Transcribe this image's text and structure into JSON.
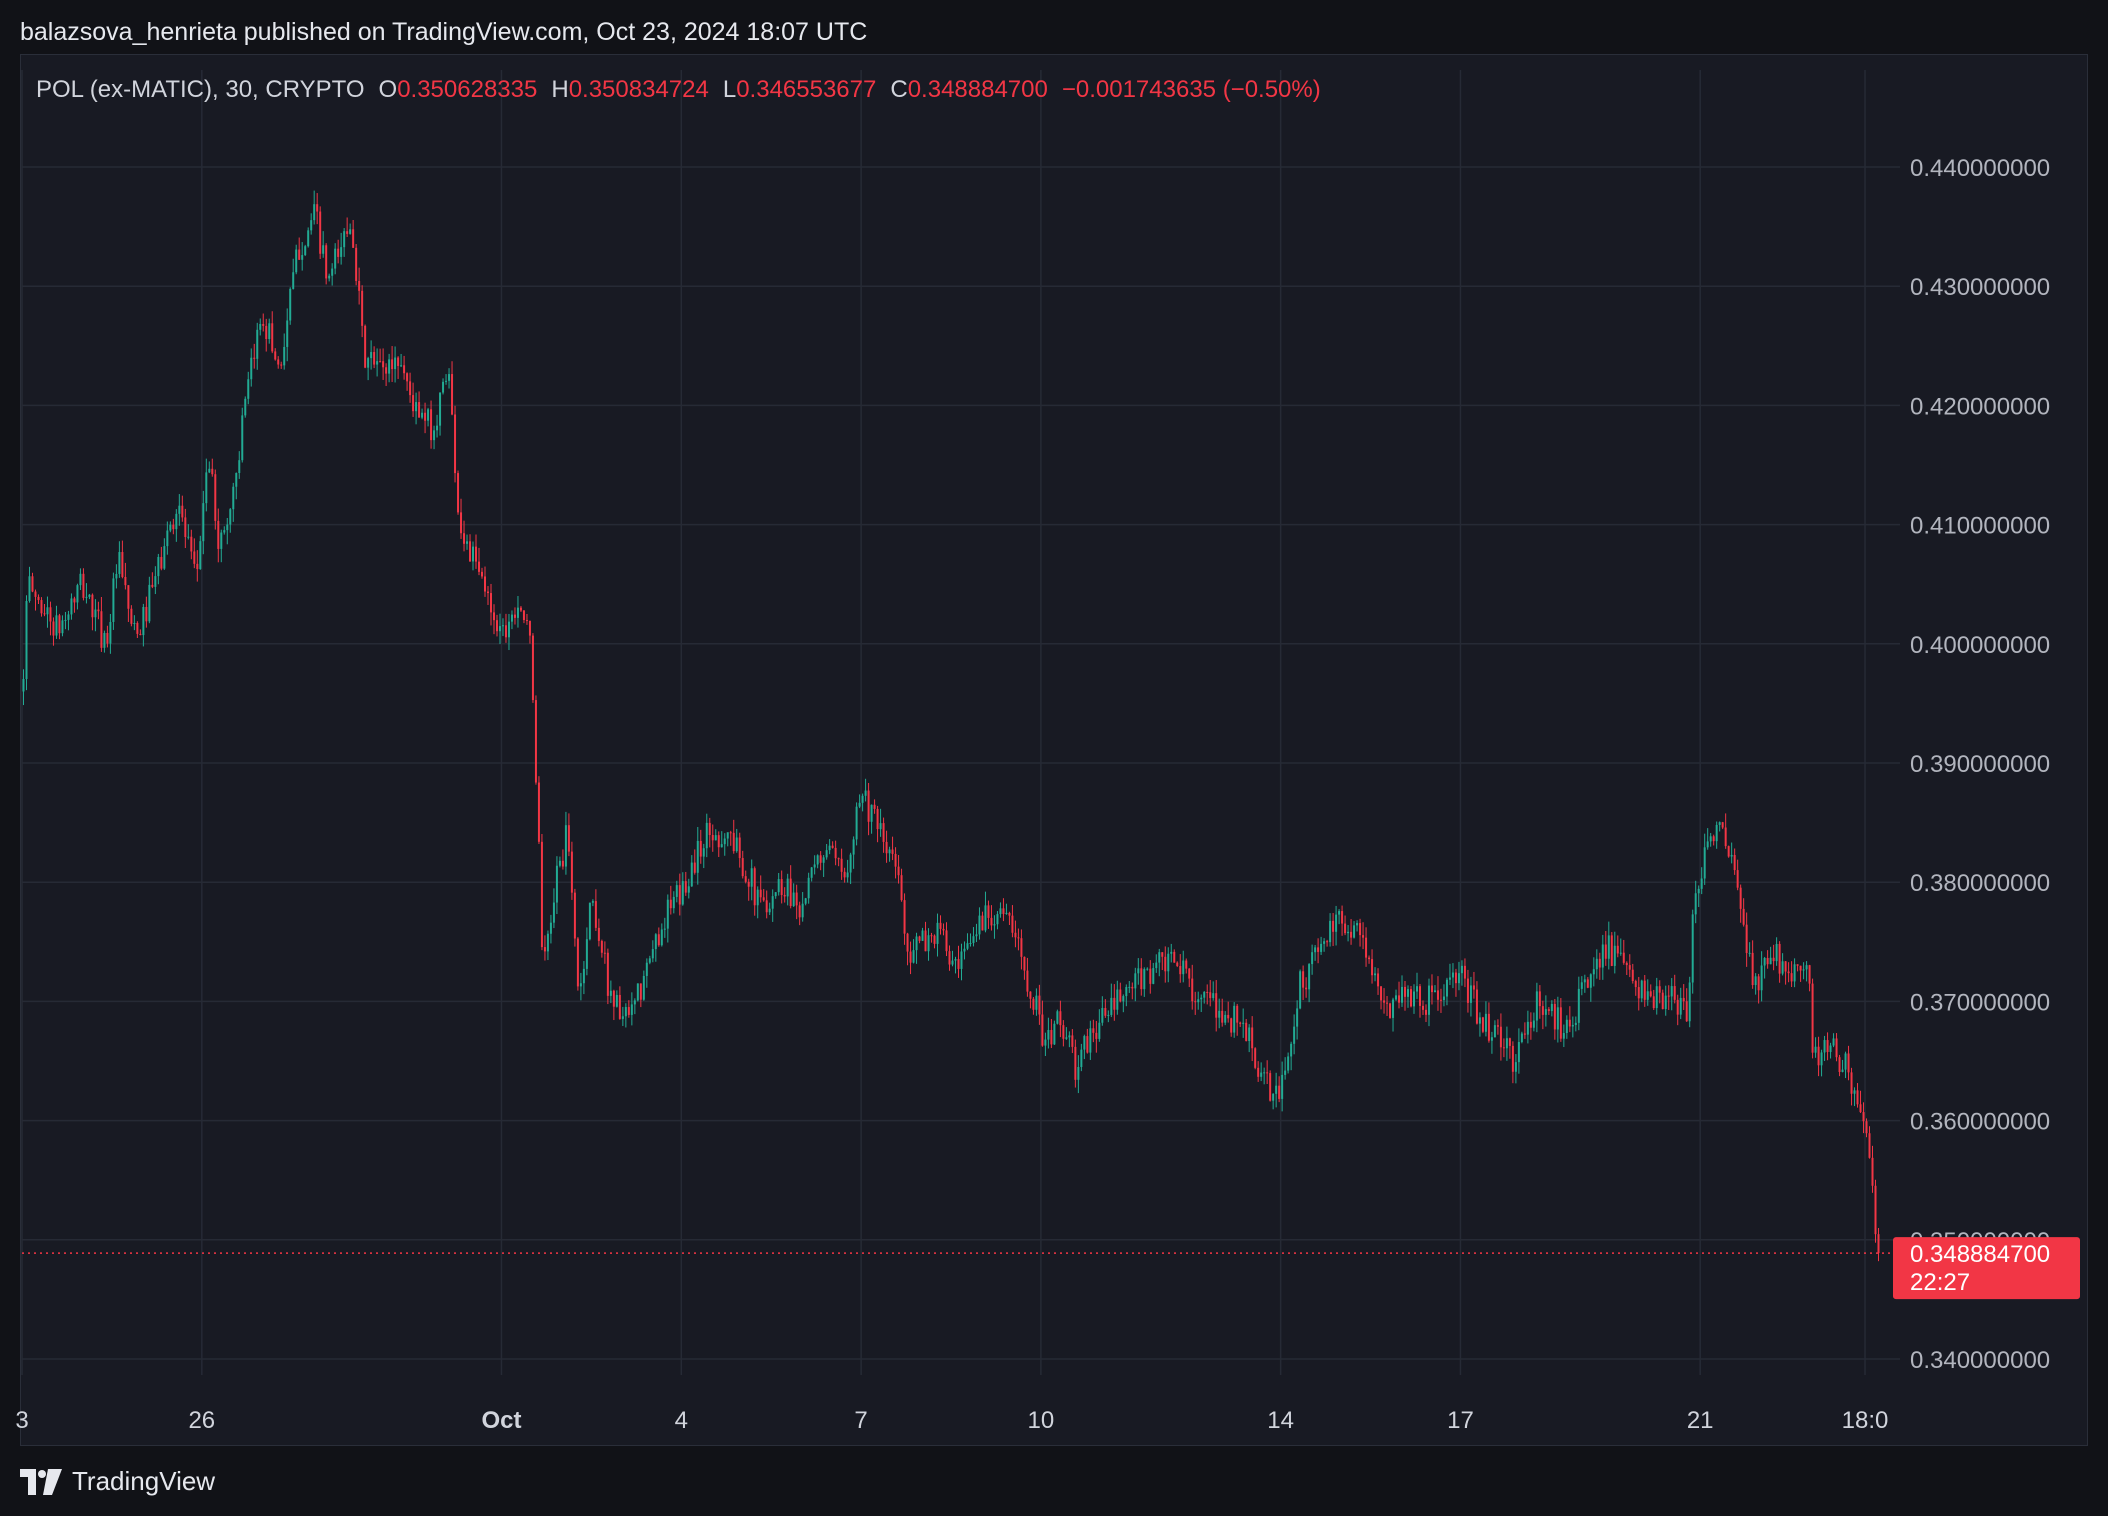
{
  "header": {
    "published": "balazsova_henrieta published on TradingView.com, Oct 23, 2024 18:07 UTC"
  },
  "legend": {
    "symbol": "POL (ex-MATIC), 30, CRYPTO",
    "o_label": "O",
    "o_value": "0.350628335",
    "h_label": "H",
    "h_value": "0.350834724",
    "l_label": "L",
    "l_value": "0.346553677",
    "c_label": "C",
    "c_value": "0.348884700",
    "change": "−0.001743635 (−0.50%)"
  },
  "price_tag": {
    "price": "0.348884700",
    "countdown": "22:27"
  },
  "footer": {
    "brand": "TradingView"
  },
  "colors": {
    "up": "#22ab94",
    "down": "#f23645",
    "background": "#181a23",
    "grid": "#262a35",
    "axis_text": "#b2b5be"
  },
  "chart_data": {
    "type": "candlestick",
    "interval": "30m",
    "ylim": [
      0.338,
      0.445
    ],
    "y_ticks": [
      "0.340000000",
      "0.350000000",
      "0.360000000",
      "0.370000000",
      "0.380000000",
      "0.390000000",
      "0.400000000",
      "0.410000000",
      "0.420000000",
      "0.430000000",
      "0.440000000"
    ],
    "x_ticks": [
      {
        "label": "3",
        "t": 0.0
      },
      {
        "label": "26",
        "t": 3.0
      },
      {
        "label": "Oct",
        "t": 8.0
      },
      {
        "label": "4",
        "t": 11.0
      },
      {
        "label": "7",
        "t": 14.0
      },
      {
        "label": "10",
        "t": 17.0
      },
      {
        "label": "14",
        "t": 21.0
      },
      {
        "label": "17",
        "t": 24.0
      },
      {
        "label": "21",
        "t": 28.0
      },
      {
        "label": "18:0",
        "t": 30.75
      }
    ],
    "t_range": [
      0.0,
      31.0
    ],
    "last_price": 0.3488847,
    "path_keypoints": [
      [
        0.0,
        0.396
      ],
      [
        0.1,
        0.405
      ],
      [
        0.6,
        0.401
      ],
      [
        1.0,
        0.405
      ],
      [
        1.4,
        0.4
      ],
      [
        1.6,
        0.407
      ],
      [
        1.9,
        0.4
      ],
      [
        2.2,
        0.405
      ],
      [
        2.6,
        0.412
      ],
      [
        2.9,
        0.405
      ],
      [
        3.1,
        0.416
      ],
      [
        3.3,
        0.408
      ],
      [
        3.5,
        0.412
      ],
      [
        3.7,
        0.419
      ],
      [
        4.0,
        0.428
      ],
      [
        4.3,
        0.423
      ],
      [
        4.6,
        0.433
      ],
      [
        4.9,
        0.436
      ],
      [
        5.1,
        0.43
      ],
      [
        5.3,
        0.433
      ],
      [
        5.5,
        0.436
      ],
      [
        5.7,
        0.424
      ],
      [
        6.0,
        0.423
      ],
      [
        6.3,
        0.424
      ],
      [
        6.6,
        0.419
      ],
      [
        6.9,
        0.418
      ],
      [
        7.1,
        0.424
      ],
      [
        7.3,
        0.41
      ],
      [
        7.6,
        0.406
      ],
      [
        8.0,
        0.401
      ],
      [
        8.3,
        0.404
      ],
      [
        8.5,
        0.399
      ],
      [
        8.6,
        0.386
      ],
      [
        8.7,
        0.372
      ],
      [
        8.9,
        0.38
      ],
      [
        9.1,
        0.384
      ],
      [
        9.3,
        0.37
      ],
      [
        9.5,
        0.379
      ],
      [
        9.8,
        0.371
      ],
      [
        10.1,
        0.368
      ],
      [
        10.4,
        0.372
      ],
      [
        10.7,
        0.377
      ],
      [
        11.0,
        0.379
      ],
      [
        11.4,
        0.384
      ],
      [
        11.8,
        0.384
      ],
      [
        12.1,
        0.381
      ],
      [
        12.3,
        0.378
      ],
      [
        12.7,
        0.38
      ],
      [
        13.0,
        0.378
      ],
      [
        13.4,
        0.383
      ],
      [
        13.7,
        0.38
      ],
      [
        14.0,
        0.388
      ],
      [
        14.3,
        0.384
      ],
      [
        14.6,
        0.381
      ],
      [
        14.8,
        0.374
      ],
      [
        15.3,
        0.376
      ],
      [
        15.6,
        0.372
      ],
      [
        16.0,
        0.377
      ],
      [
        16.3,
        0.378
      ],
      [
        16.6,
        0.375
      ],
      [
        16.9,
        0.37
      ],
      [
        17.1,
        0.366
      ],
      [
        17.3,
        0.369
      ],
      [
        17.6,
        0.364
      ],
      [
        17.8,
        0.367
      ],
      [
        18.1,
        0.369
      ],
      [
        18.5,
        0.371
      ],
      [
        18.9,
        0.373
      ],
      [
        19.3,
        0.373
      ],
      [
        19.7,
        0.37
      ],
      [
        20.0,
        0.369
      ],
      [
        20.4,
        0.368
      ],
      [
        20.7,
        0.363
      ],
      [
        21.0,
        0.362
      ],
      [
        21.3,
        0.371
      ],
      [
        21.7,
        0.375
      ],
      [
        22.1,
        0.377
      ],
      [
        22.4,
        0.375
      ],
      [
        22.7,
        0.369
      ],
      [
        23.0,
        0.371
      ],
      [
        23.5,
        0.37
      ],
      [
        24.0,
        0.372
      ],
      [
        24.3,
        0.369
      ],
      [
        24.6,
        0.367
      ],
      [
        24.9,
        0.365
      ],
      [
        25.3,
        0.37
      ],
      [
        25.7,
        0.368
      ],
      [
        26.0,
        0.37
      ],
      [
        26.4,
        0.375
      ],
      [
        26.8,
        0.372
      ],
      [
        27.2,
        0.37
      ],
      [
        27.6,
        0.37
      ],
      [
        27.8,
        0.369
      ],
      [
        27.9,
        0.379
      ],
      [
        28.0,
        0.381
      ],
      [
        28.25,
        0.385
      ],
      [
        28.5,
        0.382
      ],
      [
        28.7,
        0.377
      ],
      [
        28.9,
        0.371
      ],
      [
        29.2,
        0.374
      ],
      [
        29.5,
        0.373
      ],
      [
        29.8,
        0.372
      ],
      [
        29.9,
        0.365
      ],
      [
        30.2,
        0.366
      ],
      [
        30.5,
        0.364
      ],
      [
        30.75,
        0.359
      ],
      [
        30.95,
        0.35
      ],
      [
        31.0,
        0.3489
      ]
    ]
  }
}
